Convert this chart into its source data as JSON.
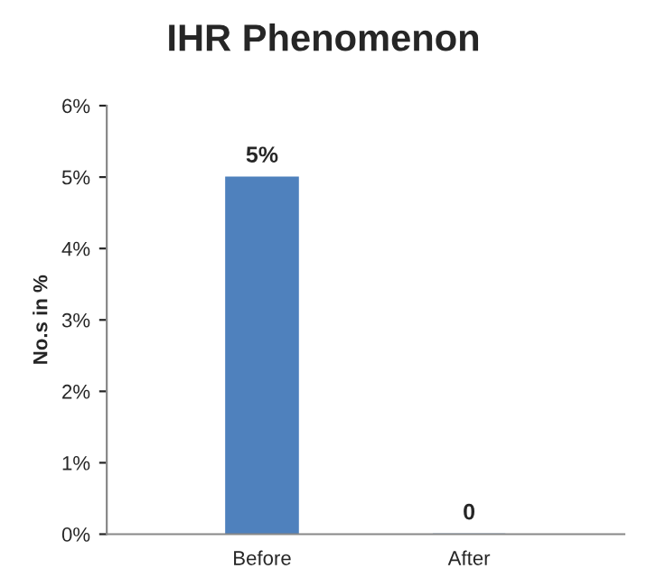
{
  "chart_data": {
    "type": "bar",
    "title": "IHR Phenomenon",
    "ylabel": "No.s in %",
    "categories": [
      "Before",
      "After"
    ],
    "values": [
      5,
      0
    ],
    "value_labels": [
      "5%",
      "0"
    ],
    "color": "#4f81bd",
    "ylim": [
      0,
      6
    ],
    "yticks": [
      {
        "value": 0,
        "label": "0%"
      },
      {
        "value": 1,
        "label": "1%"
      },
      {
        "value": 2,
        "label": "2%"
      },
      {
        "value": 3,
        "label": "3%"
      },
      {
        "value": 4,
        "label": "4%"
      },
      {
        "value": 5,
        "label": "5%"
      },
      {
        "value": 6,
        "label": "6%"
      }
    ],
    "grid": false,
    "legend": false
  }
}
